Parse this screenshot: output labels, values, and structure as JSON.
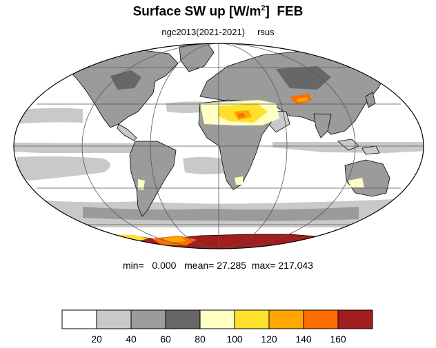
{
  "title": {
    "main": "Surface SW up [W/m",
    "superscript": "2",
    "close": "]",
    "month": "FEB"
  },
  "subtitle": {
    "run": "ngc2013(2021-2021)",
    "variable": "rsus"
  },
  "stats": {
    "min_label": "min=",
    "min_value": "0.000",
    "mean_label": "mean=",
    "mean_value": "27.285",
    "max_label": "max=",
    "max_value": "217.043"
  },
  "map": {
    "projection": "mollweide",
    "units": "W/m2",
    "colors": {
      "ocean": "#ffffff",
      "coastline": "#000000",
      "gridline": "#555555"
    }
  },
  "legend": {
    "levels": [
      "20",
      "40",
      "60",
      "80",
      "100",
      "120",
      "140",
      "160"
    ],
    "colors": [
      "#ffffff",
      "#c9c9c9",
      "#9b9b9b",
      "#676767",
      "#ffffc4",
      "#ffe12d",
      "#ffa600",
      "#ff6d00",
      "#a21e1e"
    ]
  }
}
